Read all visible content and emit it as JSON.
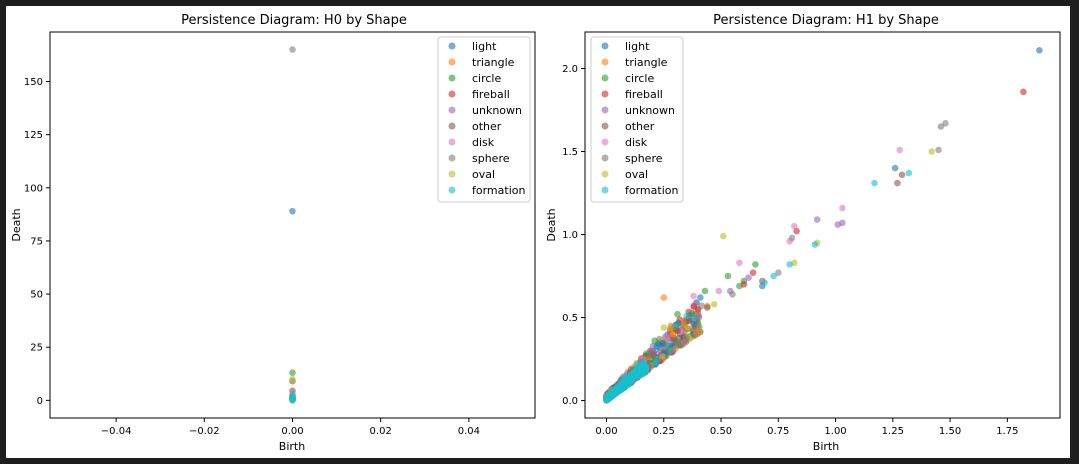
{
  "palette": {
    "light": "#1f77b4",
    "triangle": "#ff7f0e",
    "circle": "#2ca02c",
    "fireball": "#d62728",
    "unknown": "#9467bd",
    "other": "#8c564b",
    "disk": "#e377c2",
    "sphere": "#7f7f7f",
    "oval": "#bcbd22",
    "formation": "#17becf"
  },
  "chart_data": [
    {
      "type": "scatter",
      "title": "Persistence Diagram: H0 by Shape",
      "xlabel": "Birth",
      "ylabel": "Death",
      "xlim": [
        -0.055,
        0.055
      ],
      "ylim": [
        -8.3,
        173.3
      ],
      "xticks": [
        -0.04,
        -0.02,
        0.0,
        0.02,
        0.04
      ],
      "xtick_labels": [
        "−0.04",
        "−0.02",
        "0.00",
        "0.02",
        "0.04"
      ],
      "yticks": [
        0,
        25,
        50,
        75,
        100,
        125,
        150
      ],
      "ytick_labels": [
        "0",
        "25",
        "50",
        "75",
        "100",
        "125",
        "150"
      ],
      "grid": false,
      "legend_placement": "top-right",
      "series": [
        {
          "name": "light",
          "points": [
            [
              0,
              89
            ],
            [
              0,
              0.3
            ],
            [
              0,
              1.0
            ]
          ]
        },
        {
          "name": "triangle",
          "points": [
            [
              0,
              0.5
            ],
            [
              0,
              1.5
            ]
          ]
        },
        {
          "name": "circle",
          "points": [
            [
              0,
              13
            ],
            [
              0,
              0.4
            ]
          ]
        },
        {
          "name": "fireball",
          "points": [
            [
              0,
              4.5
            ],
            [
              0,
              0.6
            ]
          ]
        },
        {
          "name": "unknown",
          "points": [
            [
              0,
              0.8
            ],
            [
              0,
              2.0
            ]
          ]
        },
        {
          "name": "other",
          "points": [
            [
              0,
              9
            ],
            [
              0,
              0.7
            ]
          ]
        },
        {
          "name": "disk",
          "points": [
            [
              0,
              1.2
            ],
            [
              0,
              0.2
            ]
          ]
        },
        {
          "name": "sphere",
          "points": [
            [
              0,
              165
            ],
            [
              0,
              0.9
            ]
          ]
        },
        {
          "name": "oval",
          "points": [
            [
              0,
              10
            ],
            [
              0,
              0.5
            ]
          ]
        },
        {
          "name": "formation",
          "points": [
            [
              0,
              3
            ],
            [
              0,
              2
            ],
            [
              0,
              1
            ],
            [
              0,
              0.5
            ],
            [
              0,
              0
            ]
          ]
        }
      ]
    },
    {
      "type": "scatter",
      "title": "Persistence Diagram: H1 by Shape",
      "xlabel": "Birth",
      "ylabel": "Death",
      "xlim": [
        -0.094,
        1.98
      ],
      "ylim": [
        -0.105,
        2.22
      ],
      "xticks": [
        0.0,
        0.25,
        0.5,
        0.75,
        1.0,
        1.25,
        1.5,
        1.75
      ],
      "xtick_labels": [
        "0.00",
        "0.25",
        "0.50",
        "0.75",
        "1.00",
        "1.25",
        "1.50",
        "1.75"
      ],
      "yticks": [
        0.0,
        0.5,
        1.0,
        1.5,
        2.0
      ],
      "ytick_labels": [
        "0.0",
        "0.5",
        "1.0",
        "1.5",
        "2.0"
      ],
      "grid": false,
      "legend_placement": "top-left",
      "series": [
        {
          "name": "light",
          "points": [
            [
              1.89,
              2.11
            ],
            [
              1.26,
              1.4
            ],
            [
              0.68,
              0.69
            ],
            [
              0.38,
              0.46
            ]
          ]
        },
        {
          "name": "triangle",
          "points": [
            [
              0.28,
              0.45
            ],
            [
              0.25,
              0.62
            ],
            [
              0.34,
              0.48
            ],
            [
              0.44,
              0.57
            ],
            [
              0.29,
              0.4
            ]
          ]
        },
        {
          "name": "circle",
          "points": [
            [
              0.53,
              0.75
            ],
            [
              0.65,
              0.82
            ],
            [
              0.31,
              0.52
            ],
            [
              0.43,
              0.66
            ],
            [
              0.6,
              0.72
            ],
            [
              0.58,
              0.69
            ],
            [
              0.21,
              0.36
            ]
          ]
        },
        {
          "name": "fireball",
          "points": [
            [
              1.82,
              1.86
            ],
            [
              0.83,
              1.02
            ],
            [
              0.64,
              0.77
            ],
            [
              0.6,
              0.7
            ],
            [
              0.4,
              0.55
            ]
          ]
        },
        {
          "name": "unknown",
          "points": [
            [
              0.92,
              1.09
            ],
            [
              1.01,
              1.06
            ],
            [
              1.03,
              1.07
            ],
            [
              0.54,
              0.66
            ],
            [
              0.62,
              0.74
            ],
            [
              0.4,
              0.52
            ]
          ]
        },
        {
          "name": "other",
          "points": [
            [
              1.29,
              1.36
            ],
            [
              1.27,
              1.31
            ],
            [
              0.68,
              0.72
            ],
            [
              0.36,
              0.48
            ],
            [
              0.44,
              0.56
            ],
            [
              0.31,
              0.42
            ]
          ]
        },
        {
          "name": "disk",
          "points": [
            [
              1.28,
              1.51
            ],
            [
              1.03,
              1.16
            ],
            [
              0.82,
              1.05
            ],
            [
              0.58,
              0.83
            ],
            [
              0.49,
              0.66
            ],
            [
              0.8,
              0.96
            ],
            [
              0.38,
              0.63
            ]
          ]
        },
        {
          "name": "sphere",
          "points": [
            [
              1.48,
              1.67
            ],
            [
              1.46,
              1.65
            ],
            [
              1.45,
              1.51
            ],
            [
              0.81,
              0.98
            ],
            [
              0.75,
              0.77
            ],
            [
              0.55,
              0.64
            ]
          ]
        },
        {
          "name": "oval",
          "points": [
            [
              1.42,
              1.5
            ],
            [
              0.51,
              0.99
            ],
            [
              0.92,
              0.95
            ],
            [
              0.82,
              0.83
            ],
            [
              0.25,
              0.44
            ],
            [
              0.47,
              0.58
            ]
          ]
        },
        {
          "name": "formation",
          "points": [
            [
              1.32,
              1.37
            ],
            [
              1.17,
              1.31
            ],
            [
              0.91,
              0.94
            ],
            [
              0.8,
              0.82
            ],
            [
              0.73,
              0.75
            ],
            [
              0.69,
              0.71
            ],
            [
              0.35,
              0.51
            ],
            [
              0.3,
              0.45
            ]
          ]
        }
      ]
    }
  ]
}
